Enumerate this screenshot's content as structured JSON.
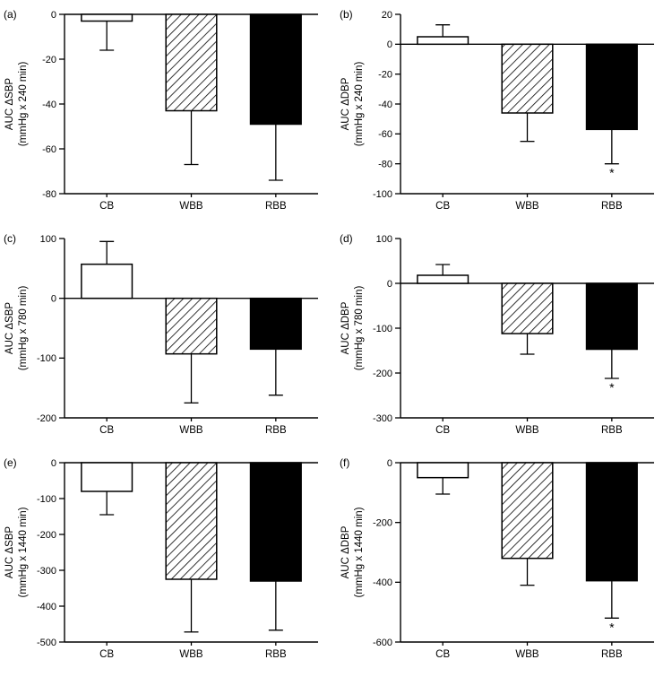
{
  "figure_title": "",
  "chart_data": [
    {
      "type": "bar",
      "panel": "(a)",
      "categories": [
        "CB",
        "WBB",
        "RBB"
      ],
      "values": [
        -3,
        -43,
        -49
      ],
      "errors": [
        13,
        24,
        25
      ],
      "styles": [
        "white",
        "hatch",
        "black"
      ],
      "sig": [
        false,
        false,
        false
      ],
      "title": "",
      "xlabel": "",
      "ylabel_lines": [
        "AUC ΔSBP",
        "(mmHg x 240 min)"
      ],
      "ylabel": "AUC ΔSBP (mmHg x 240 min)",
      "ylim": [
        -80,
        0
      ],
      "yticks": [
        0,
        -20,
        -40,
        -60,
        -80
      ]
    },
    {
      "type": "bar",
      "panel": "(b)",
      "categories": [
        "CB",
        "WBB",
        "RBB"
      ],
      "values": [
        5,
        -46,
        -57
      ],
      "errors": [
        8,
        19,
        23
      ],
      "styles": [
        "white",
        "hatch",
        "black"
      ],
      "sig": [
        false,
        false,
        true
      ],
      "title": "",
      "xlabel": "",
      "ylabel_lines": [
        "AUC ΔDBP",
        "(mmHg x 240 min)"
      ],
      "ylabel": "AUC ΔDBP (mmHg x 240 min)",
      "ylim": [
        -100,
        20
      ],
      "yticks": [
        20,
        0,
        -20,
        -40,
        -60,
        -80,
        -100
      ]
    },
    {
      "type": "bar",
      "panel": "(c)",
      "categories": [
        "CB",
        "WBB",
        "RBB"
      ],
      "values": [
        57,
        -93,
        -85
      ],
      "errors": [
        38,
        82,
        77
      ],
      "styles": [
        "white",
        "hatch",
        "black"
      ],
      "sig": [
        false,
        false,
        false
      ],
      "title": "",
      "xlabel": "",
      "ylabel_lines": [
        "AUC ΔSBP",
        "(mmHg x 780 min)"
      ],
      "ylabel": "AUC ΔSBP (mmHg x 780 min)",
      "ylim": [
        -200,
        100
      ],
      "yticks": [
        100,
        0,
        -100,
        -200
      ]
    },
    {
      "type": "bar",
      "panel": "(d)",
      "categories": [
        "CB",
        "WBB",
        "RBB"
      ],
      "values": [
        18,
        -112,
        -147
      ],
      "errors": [
        24,
        46,
        65
      ],
      "styles": [
        "white",
        "hatch",
        "black"
      ],
      "sig": [
        false,
        false,
        true
      ],
      "title": "",
      "xlabel": "",
      "ylabel_lines": [
        "AUC ΔDBP",
        "(mmHg x 780 min)"
      ],
      "ylabel": "AUC ΔDBP (mmHg x 780 min)",
      "ylim": [
        -300,
        100
      ],
      "yticks": [
        100,
        0,
        -100,
        -200,
        -300
      ]
    },
    {
      "type": "bar",
      "panel": "(e)",
      "categories": [
        "CB",
        "WBB",
        "RBB"
      ],
      "values": [
        -80,
        -325,
        -330
      ],
      "errors": [
        65,
        147,
        137
      ],
      "styles": [
        "white",
        "hatch",
        "black"
      ],
      "sig": [
        false,
        false,
        false
      ],
      "title": "",
      "xlabel": "",
      "ylabel_lines": [
        "AUC ΔSBP",
        "(mmHg x 1440 min)"
      ],
      "ylabel": "AUC ΔSBP (mmHg x 1440 min)",
      "ylim": [
        -500,
        0
      ],
      "yticks": [
        0,
        -100,
        -200,
        -300,
        -400,
        -500
      ]
    },
    {
      "type": "bar",
      "panel": "(f)",
      "categories": [
        "CB",
        "WBB",
        "RBB"
      ],
      "values": [
        -50,
        -320,
        -395
      ],
      "errors": [
        55,
        90,
        125
      ],
      "styles": [
        "white",
        "hatch",
        "black"
      ],
      "sig": [
        false,
        false,
        true
      ],
      "title": "",
      "xlabel": "",
      "ylabel_lines": [
        "AUC ΔDBP",
        "(mmHg x 1440 min)"
      ],
      "ylabel": "AUC ΔDBP (mmHg x 1440 min)",
      "ylim": [
        -600,
        0
      ],
      "yticks": [
        0,
        -200,
        -400,
        -600
      ]
    }
  ],
  "colors": {
    "axis": "#000000",
    "bar_white": "#ffffff",
    "bar_black": "#000000",
    "hatch_line": "#000000",
    "background": "#ffffff"
  },
  "sig_marker": "*"
}
